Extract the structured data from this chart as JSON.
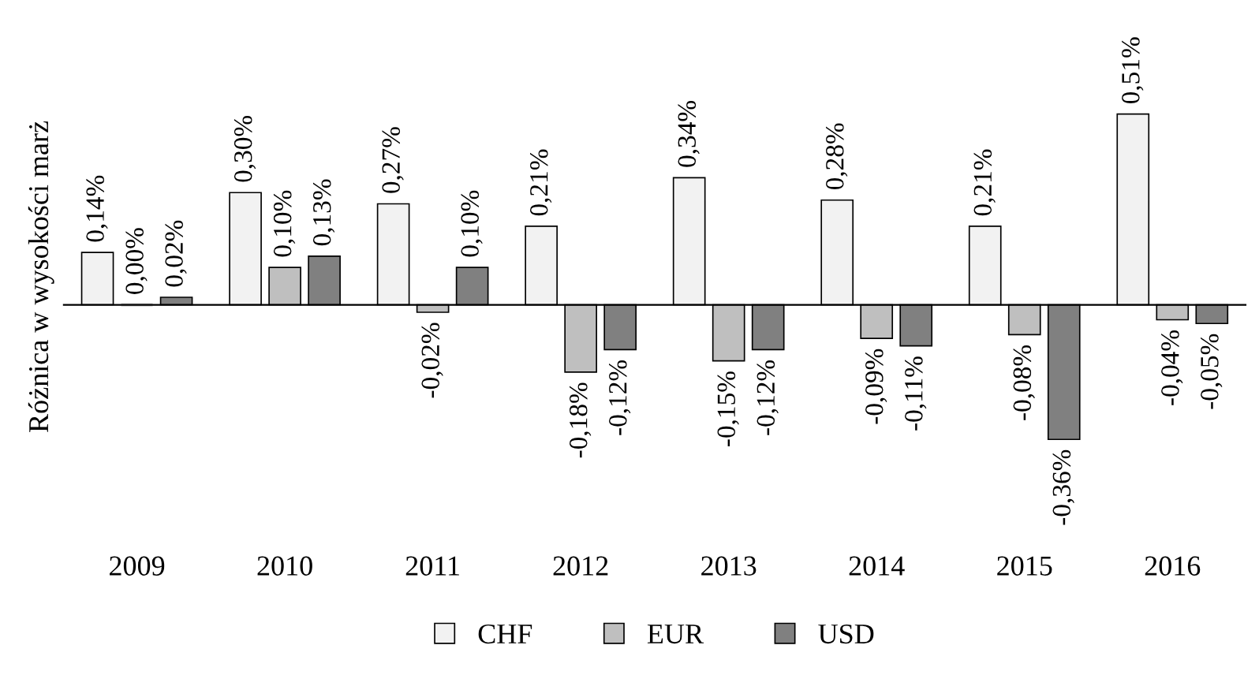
{
  "chart_data": {
    "type": "bar",
    "ylabel": "Różnica w wysokości marż",
    "categories": [
      "2009",
      "2010",
      "2011",
      "2012",
      "2013",
      "2014",
      "2015",
      "2016"
    ],
    "series": [
      {
        "name": "CHF",
        "color": "#f2f2f2",
        "values": [
          0.14,
          0.3,
          0.27,
          0.21,
          0.34,
          0.28,
          0.21,
          0.51
        ],
        "value_labels": [
          "0,14%",
          "0,30%",
          "0,27%",
          "0,21%",
          "0,34%",
          "0,28%",
          "0,21%",
          "0,51%"
        ]
      },
      {
        "name": "EUR",
        "color": "#bfbfbf",
        "values": [
          0.0,
          0.1,
          -0.02,
          -0.18,
          -0.15,
          -0.09,
          -0.08,
          -0.04
        ],
        "value_labels": [
          "0,00%",
          "0,10%",
          "-0,02%",
          "-0,18%",
          "-0,15%",
          "-0,09%",
          "-0,08%",
          "-0,04%"
        ]
      },
      {
        "name": "USD",
        "color": "#808080",
        "values": [
          0.02,
          0.13,
          0.1,
          -0.12,
          -0.12,
          -0.11,
          -0.36,
          -0.05
        ],
        "value_labels": [
          "0,02%",
          "0,13%",
          "0,10%",
          "-0,12%",
          "-0,12%",
          "-0,11%",
          "-0,36%",
          "-0,05%"
        ]
      }
    ],
    "legend": "bottom",
    "grid": false
  }
}
